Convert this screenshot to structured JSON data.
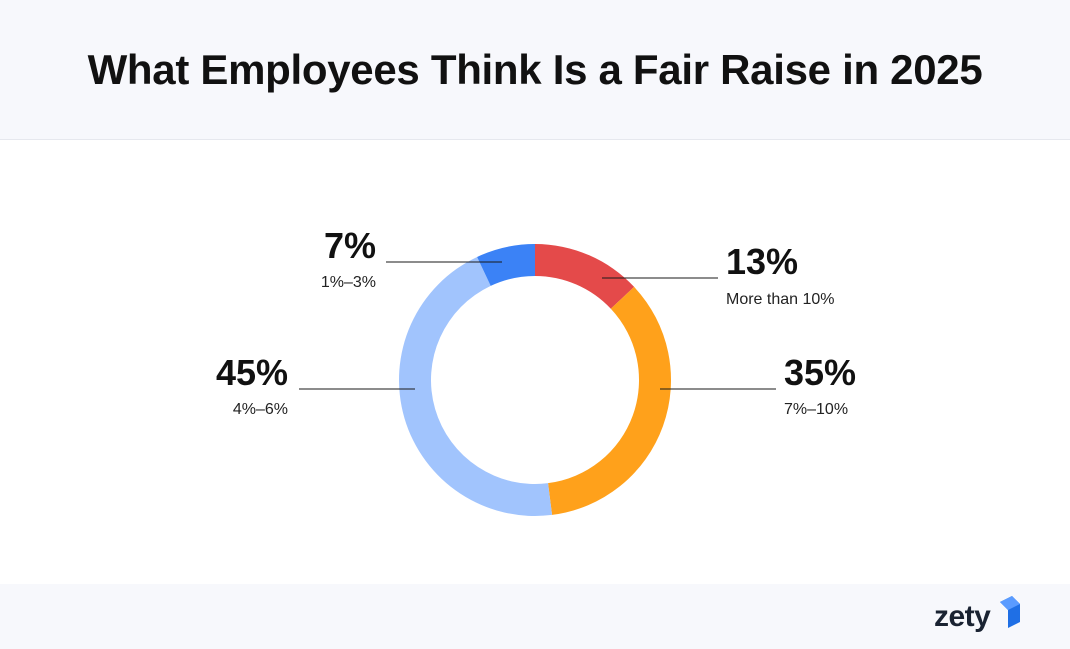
{
  "title": "What Employees Think Is a Fair Raise in 2025",
  "chart_data": {
    "type": "pie",
    "variant": "donut",
    "title": "What Employees Think Is a Fair Raise in 2025",
    "slices": [
      {
        "label": "More than 10%",
        "value": 13,
        "display": "13%",
        "color": "#e44a4a"
      },
      {
        "label": "7%–10%",
        "value": 35,
        "display": "35%",
        "color": "#ffa11b"
      },
      {
        "label": "4%–6%",
        "value": 45,
        "display": "45%",
        "color": "#a1c4fd"
      },
      {
        "label": "1%–3%",
        "value": 7,
        "display": "7%",
        "color": "#3b82f6"
      }
    ],
    "legend": "none",
    "labels_position": "outside-with-leader-lines"
  },
  "logo": {
    "text": "zety",
    "accent_color": "#1f6fe5"
  }
}
